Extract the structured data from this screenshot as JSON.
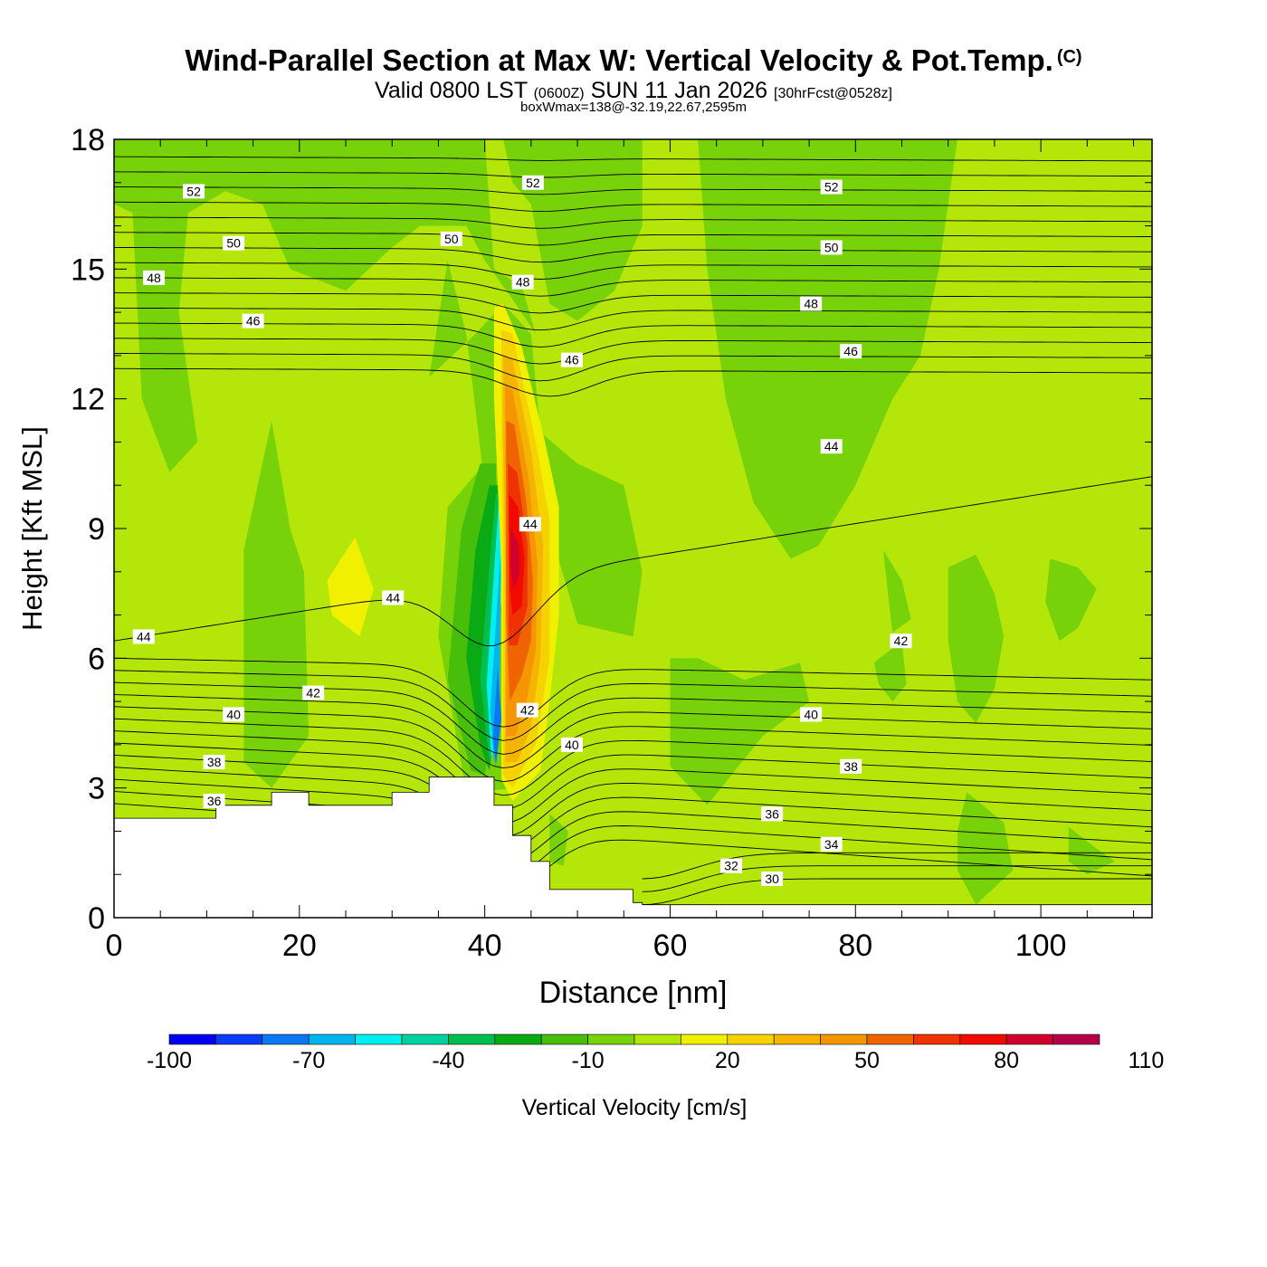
{
  "header": {
    "title": "Wind-Parallel Section at Max W: Vertical Velocity & Pot.Temp.",
    "copyright": "(C)",
    "subtitle_main": "Valid 0800 LST",
    "subtitle_utc": "(0600Z)",
    "subtitle_date": "SUN 11 Jan 2026",
    "subtitle_fcst": "[30hrFcst@0528z]",
    "note": "boxWmax=138@-32.19,22.67,2595m"
  },
  "colors": {
    "background_field": "#b5e60a",
    "terrain": "#ffffff",
    "contour": "#000000",
    "scale": [
      "#0000f0",
      "#0a3cf5",
      "#0a78f0",
      "#00b4f0",
      "#00f0f0",
      "#00d2a0",
      "#00be50",
      "#0aaa14",
      "#46be0a",
      "#78d20a",
      "#b5e60a",
      "#f0f000",
      "#f5d200",
      "#f5b400",
      "#f59600",
      "#f06400",
      "#f03200",
      "#f00a00",
      "#d2002d",
      "#b4004b"
    ]
  },
  "chart_data": {
    "type": "heatmap",
    "title": "Wind-Parallel Section at Max W: Vertical Velocity & Pot.Temp.",
    "xlabel": "Distance [nm]",
    "ylabel": "Height [Kft MSL]",
    "xlim": [
      0,
      112
    ],
    "ylim": [
      0,
      18
    ],
    "x_ticks": [
      0,
      20,
      40,
      60,
      80,
      100
    ],
    "y_ticks": [
      0,
      3,
      6,
      9,
      12,
      15,
      18
    ],
    "colorbar": {
      "label": "Vertical Velocity [cm/s]",
      "levels": [
        -100,
        -90,
        -80,
        -70,
        -60,
        -50,
        -40,
        -30,
        -20,
        -10,
        0,
        10,
        20,
        30,
        40,
        50,
        60,
        70,
        80,
        90,
        110
      ],
      "tick_labels": [
        "-100",
        "-70",
        "-40",
        "-10",
        "20",
        "50",
        "80",
        "110"
      ]
    },
    "terrain_profile": {
      "x": [
        0,
        11,
        11,
        17,
        17,
        21,
        21,
        30,
        30,
        34,
        34,
        41,
        41,
        43,
        43,
        45,
        45,
        47,
        47,
        56,
        56,
        57,
        57,
        112
      ],
      "y": [
        2.3,
        2.3,
        2.6,
        2.6,
        2.9,
        2.9,
        2.6,
        2.6,
        2.9,
        2.9,
        3.25,
        3.25,
        2.6,
        2.6,
        1.9,
        1.9,
        1.3,
        1.3,
        0.65,
        0.65,
        0.35,
        0.35,
        0.3,
        0.3
      ]
    },
    "isentrope_labels": [
      {
        "value": "52",
        "x": 8.6,
        "y": 16.8
      },
      {
        "value": "52",
        "x": 45.2,
        "y": 17.0
      },
      {
        "value": "52",
        "x": 77.4,
        "y": 16.9
      },
      {
        "value": "50",
        "x": 12.9,
        "y": 15.6
      },
      {
        "value": "50",
        "x": 36.4,
        "y": 15.7
      },
      {
        "value": "50",
        "x": 77.4,
        "y": 15.5
      },
      {
        "value": "48",
        "x": 4.3,
        "y": 14.8
      },
      {
        "value": "48",
        "x": 44.1,
        "y": 14.7
      },
      {
        "value": "48",
        "x": 75.2,
        "y": 14.2
      },
      {
        "value": "46",
        "x": 15.0,
        "y": 13.8
      },
      {
        "value": "46",
        "x": 49.4,
        "y": 12.9
      },
      {
        "value": "46",
        "x": 79.5,
        "y": 13.1
      },
      {
        "value": "44",
        "x": 3.2,
        "y": 6.5
      },
      {
        "value": "44",
        "x": 30.1,
        "y": 7.4
      },
      {
        "value": "44",
        "x": 44.9,
        "y": 9.1
      },
      {
        "value": "44",
        "x": 77.4,
        "y": 10.9
      },
      {
        "value": "42",
        "x": 21.5,
        "y": 5.2
      },
      {
        "value": "42",
        "x": 44.6,
        "y": 4.8
      },
      {
        "value": "42",
        "x": 84.9,
        "y": 6.4
      },
      {
        "value": "40",
        "x": 12.9,
        "y": 4.7
      },
      {
        "value": "40",
        "x": 49.4,
        "y": 4.0
      },
      {
        "value": "40",
        "x": 75.2,
        "y": 4.7
      },
      {
        "value": "38",
        "x": 10.8,
        "y": 3.6
      },
      {
        "value": "38",
        "x": 79.5,
        "y": 3.5
      },
      {
        "value": "36",
        "x": 10.8,
        "y": 2.7
      },
      {
        "value": "36",
        "x": 71.0,
        "y": 2.4
      },
      {
        "value": "34",
        "x": 77.4,
        "y": 1.7
      },
      {
        "value": "32",
        "x": 66.6,
        "y": 1.2
      },
      {
        "value": "30",
        "x": 71.0,
        "y": 0.9
      }
    ],
    "max_updraft": {
      "value_cm_s": 138,
      "x": 43.3,
      "y_kft": 8.5
    }
  }
}
